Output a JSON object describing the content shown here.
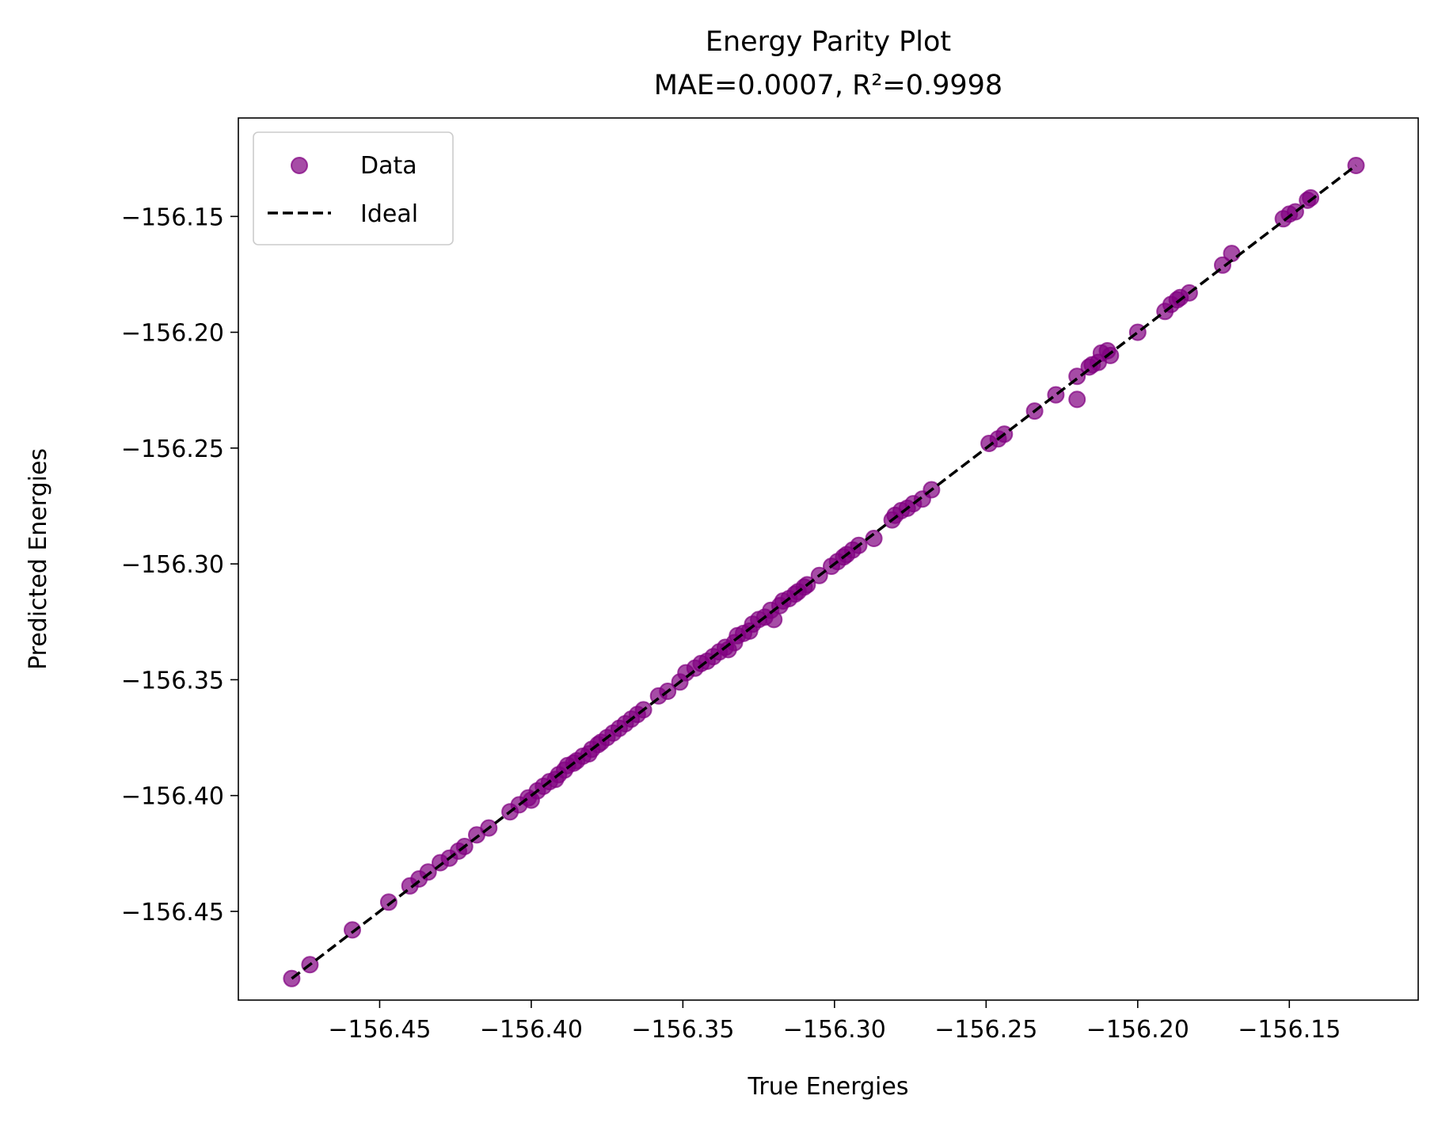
{
  "chart_data": {
    "type": "scatter",
    "title": "Energy Parity Plot",
    "subtitle": "MAE=0.0007, R²=0.9998",
    "xlabel": "True Energies",
    "ylabel": "Predicted Energies",
    "xlim": [
      -156.4966,
      -156.1075
    ],
    "ylim": [
      -156.4883,
      -156.1075
    ],
    "xticks": [
      -156.45,
      -156.4,
      -156.35,
      -156.3,
      -156.25,
      -156.2,
      -156.15
    ],
    "xtick_labels": [
      "−156.45",
      "−156.40",
      "−156.35",
      "−156.30",
      "−156.25",
      "−156.20",
      "−156.15"
    ],
    "yticks": [
      -156.45,
      -156.4,
      -156.35,
      -156.3,
      -156.25,
      -156.2,
      -156.15
    ],
    "ytick_labels": [
      "−156.45",
      "−156.40",
      "−156.35",
      "−156.30",
      "−156.25",
      "−156.20",
      "−156.15"
    ],
    "grid": false,
    "legend": {
      "position": "upper-left",
      "entries": [
        {
          "label": "Data",
          "kind": "marker",
          "color": "#800080"
        },
        {
          "label": "Ideal",
          "kind": "dashed-line",
          "color": "#000000"
        }
      ]
    },
    "series": [
      {
        "name": "Data",
        "kind": "scatter",
        "color": "#800080",
        "opacity": 0.7,
        "points": [
          [
            -156.479,
            -156.479
          ],
          [
            -156.473,
            -156.473
          ],
          [
            -156.459,
            -156.458
          ],
          [
            -156.447,
            -156.446
          ],
          [
            -156.44,
            -156.439
          ],
          [
            -156.437,
            -156.436
          ],
          [
            -156.434,
            -156.433
          ],
          [
            -156.43,
            -156.429
          ],
          [
            -156.427,
            -156.427
          ],
          [
            -156.424,
            -156.424
          ],
          [
            -156.422,
            -156.422
          ],
          [
            -156.418,
            -156.417
          ],
          [
            -156.414,
            -156.414
          ],
          [
            -156.407,
            -156.407
          ],
          [
            -156.404,
            -156.404
          ],
          [
            -156.401,
            -156.401
          ],
          [
            -156.4,
            -156.402
          ],
          [
            -156.398,
            -156.398
          ],
          [
            -156.396,
            -156.396
          ],
          [
            -156.394,
            -156.394
          ],
          [
            -156.392,
            -156.393
          ],
          [
            -156.391,
            -156.391
          ],
          [
            -156.389,
            -156.389
          ],
          [
            -156.388,
            -156.387
          ],
          [
            -156.386,
            -156.386
          ],
          [
            -156.385,
            -156.385
          ],
          [
            -156.383,
            -156.383
          ],
          [
            -156.381,
            -156.382
          ],
          [
            -156.38,
            -156.38
          ],
          [
            -156.378,
            -156.378
          ],
          [
            -156.377,
            -156.377
          ],
          [
            -156.375,
            -156.375
          ],
          [
            -156.373,
            -156.373
          ],
          [
            -156.371,
            -156.371
          ],
          [
            -156.369,
            -156.369
          ],
          [
            -156.367,
            -156.367
          ],
          [
            -156.365,
            -156.365
          ],
          [
            -156.363,
            -156.363
          ],
          [
            -156.358,
            -156.357
          ],
          [
            -156.355,
            -156.355
          ],
          [
            -156.351,
            -156.351
          ],
          [
            -156.349,
            -156.347
          ],
          [
            -156.346,
            -156.345
          ],
          [
            -156.344,
            -156.343
          ],
          [
            -156.342,
            -156.342
          ],
          [
            -156.34,
            -156.34
          ],
          [
            -156.338,
            -156.338
          ],
          [
            -156.336,
            -156.336
          ],
          [
            -156.335,
            -156.337
          ],
          [
            -156.333,
            -156.334
          ],
          [
            -156.332,
            -156.331
          ],
          [
            -156.33,
            -156.33
          ],
          [
            -156.328,
            -156.329
          ],
          [
            -156.327,
            -156.326
          ],
          [
            -156.325,
            -156.324
          ],
          [
            -156.323,
            -156.323
          ],
          [
            -156.321,
            -156.32
          ],
          [
            -156.32,
            -156.324
          ],
          [
            -156.318,
            -156.318
          ],
          [
            -156.317,
            -156.316
          ],
          [
            -156.315,
            -156.315
          ],
          [
            -156.313,
            -156.313
          ],
          [
            -156.312,
            -156.312
          ],
          [
            -156.31,
            -156.31
          ],
          [
            -156.309,
            -156.309
          ],
          [
            -156.305,
            -156.305
          ],
          [
            -156.301,
            -156.301
          ],
          [
            -156.299,
            -156.299
          ],
          [
            -156.297,
            -156.297
          ],
          [
            -156.296,
            -156.296
          ],
          [
            -156.294,
            -156.294
          ],
          [
            -156.292,
            -156.292
          ],
          [
            -156.287,
            -156.289
          ],
          [
            -156.281,
            -156.281
          ],
          [
            -156.28,
            -156.279
          ],
          [
            -156.278,
            -156.277
          ],
          [
            -156.276,
            -156.276
          ],
          [
            -156.274,
            -156.274
          ],
          [
            -156.271,
            -156.272
          ],
          [
            -156.268,
            -156.268
          ],
          [
            -156.249,
            -156.248
          ],
          [
            -156.246,
            -156.246
          ],
          [
            -156.244,
            -156.244
          ],
          [
            -156.234,
            -156.234
          ],
          [
            -156.227,
            -156.227
          ],
          [
            -156.22,
            -156.219
          ],
          [
            -156.22,
            -156.229
          ],
          [
            -156.216,
            -156.215
          ],
          [
            -156.215,
            -156.214
          ],
          [
            -156.213,
            -156.213
          ],
          [
            -156.212,
            -156.209
          ],
          [
            -156.21,
            -156.208
          ],
          [
            -156.209,
            -156.21
          ],
          [
            -156.2,
            -156.2
          ],
          [
            -156.191,
            -156.191
          ],
          [
            -156.189,
            -156.188
          ],
          [
            -156.187,
            -156.186
          ],
          [
            -156.186,
            -156.185
          ],
          [
            -156.183,
            -156.183
          ],
          [
            -156.172,
            -156.171
          ],
          [
            -156.169,
            -156.166
          ],
          [
            -156.152,
            -156.151
          ],
          [
            -156.15,
            -156.149
          ],
          [
            -156.148,
            -156.148
          ],
          [
            -156.144,
            -156.143
          ],
          [
            -156.143,
            -156.142
          ],
          [
            -156.128,
            -156.128
          ]
        ]
      },
      {
        "name": "Ideal",
        "kind": "dashed-line",
        "color": "#000000",
        "points": [
          [
            -156.479,
            -156.479
          ],
          [
            -156.128,
            -156.128
          ]
        ]
      }
    ]
  }
}
